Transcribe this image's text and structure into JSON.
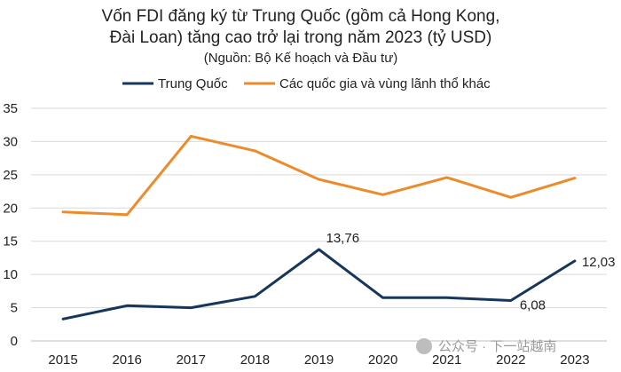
{
  "chart_data": {
    "type": "line",
    "title_line1": "Vốn FDI đăng ký từ Trung Quốc (gồm cả Hong Kong,",
    "title_line2": "Đài Loan) tăng cao trở lại trong năm 2023 (tỷ USD)",
    "subtitle": "(Nguồn: Bộ Kế hoạch và Đầu tư)",
    "xlabel": "",
    "ylabel": "",
    "x": [
      "2015",
      "2016",
      "2017",
      "2018",
      "2019",
      "2020",
      "2021",
      "2022",
      "2023"
    ],
    "ylim": [
      0,
      35
    ],
    "yticks": [
      0,
      5,
      10,
      15,
      20,
      25,
      30,
      35
    ],
    "grid": "horizontal",
    "legend_position": "top",
    "series": [
      {
        "name": "Trung Quốc",
        "color": "#16365c",
        "values": [
          3.3,
          5.3,
          5.0,
          6.7,
          13.76,
          6.5,
          6.5,
          6.08,
          12.03
        ],
        "labels": {
          "4": "13,76",
          "7": "6,08",
          "8": "12,03"
        }
      },
      {
        "name": "Các quốc gia và vùng lãnh thổ khác",
        "color": "#ed8b2a",
        "values": [
          19.4,
          19.0,
          30.8,
          28.6,
          24.3,
          22.0,
          24.6,
          21.6,
          24.5
        ],
        "labels": {}
      }
    ]
  },
  "watermark": "公众号 · 下一站越南"
}
